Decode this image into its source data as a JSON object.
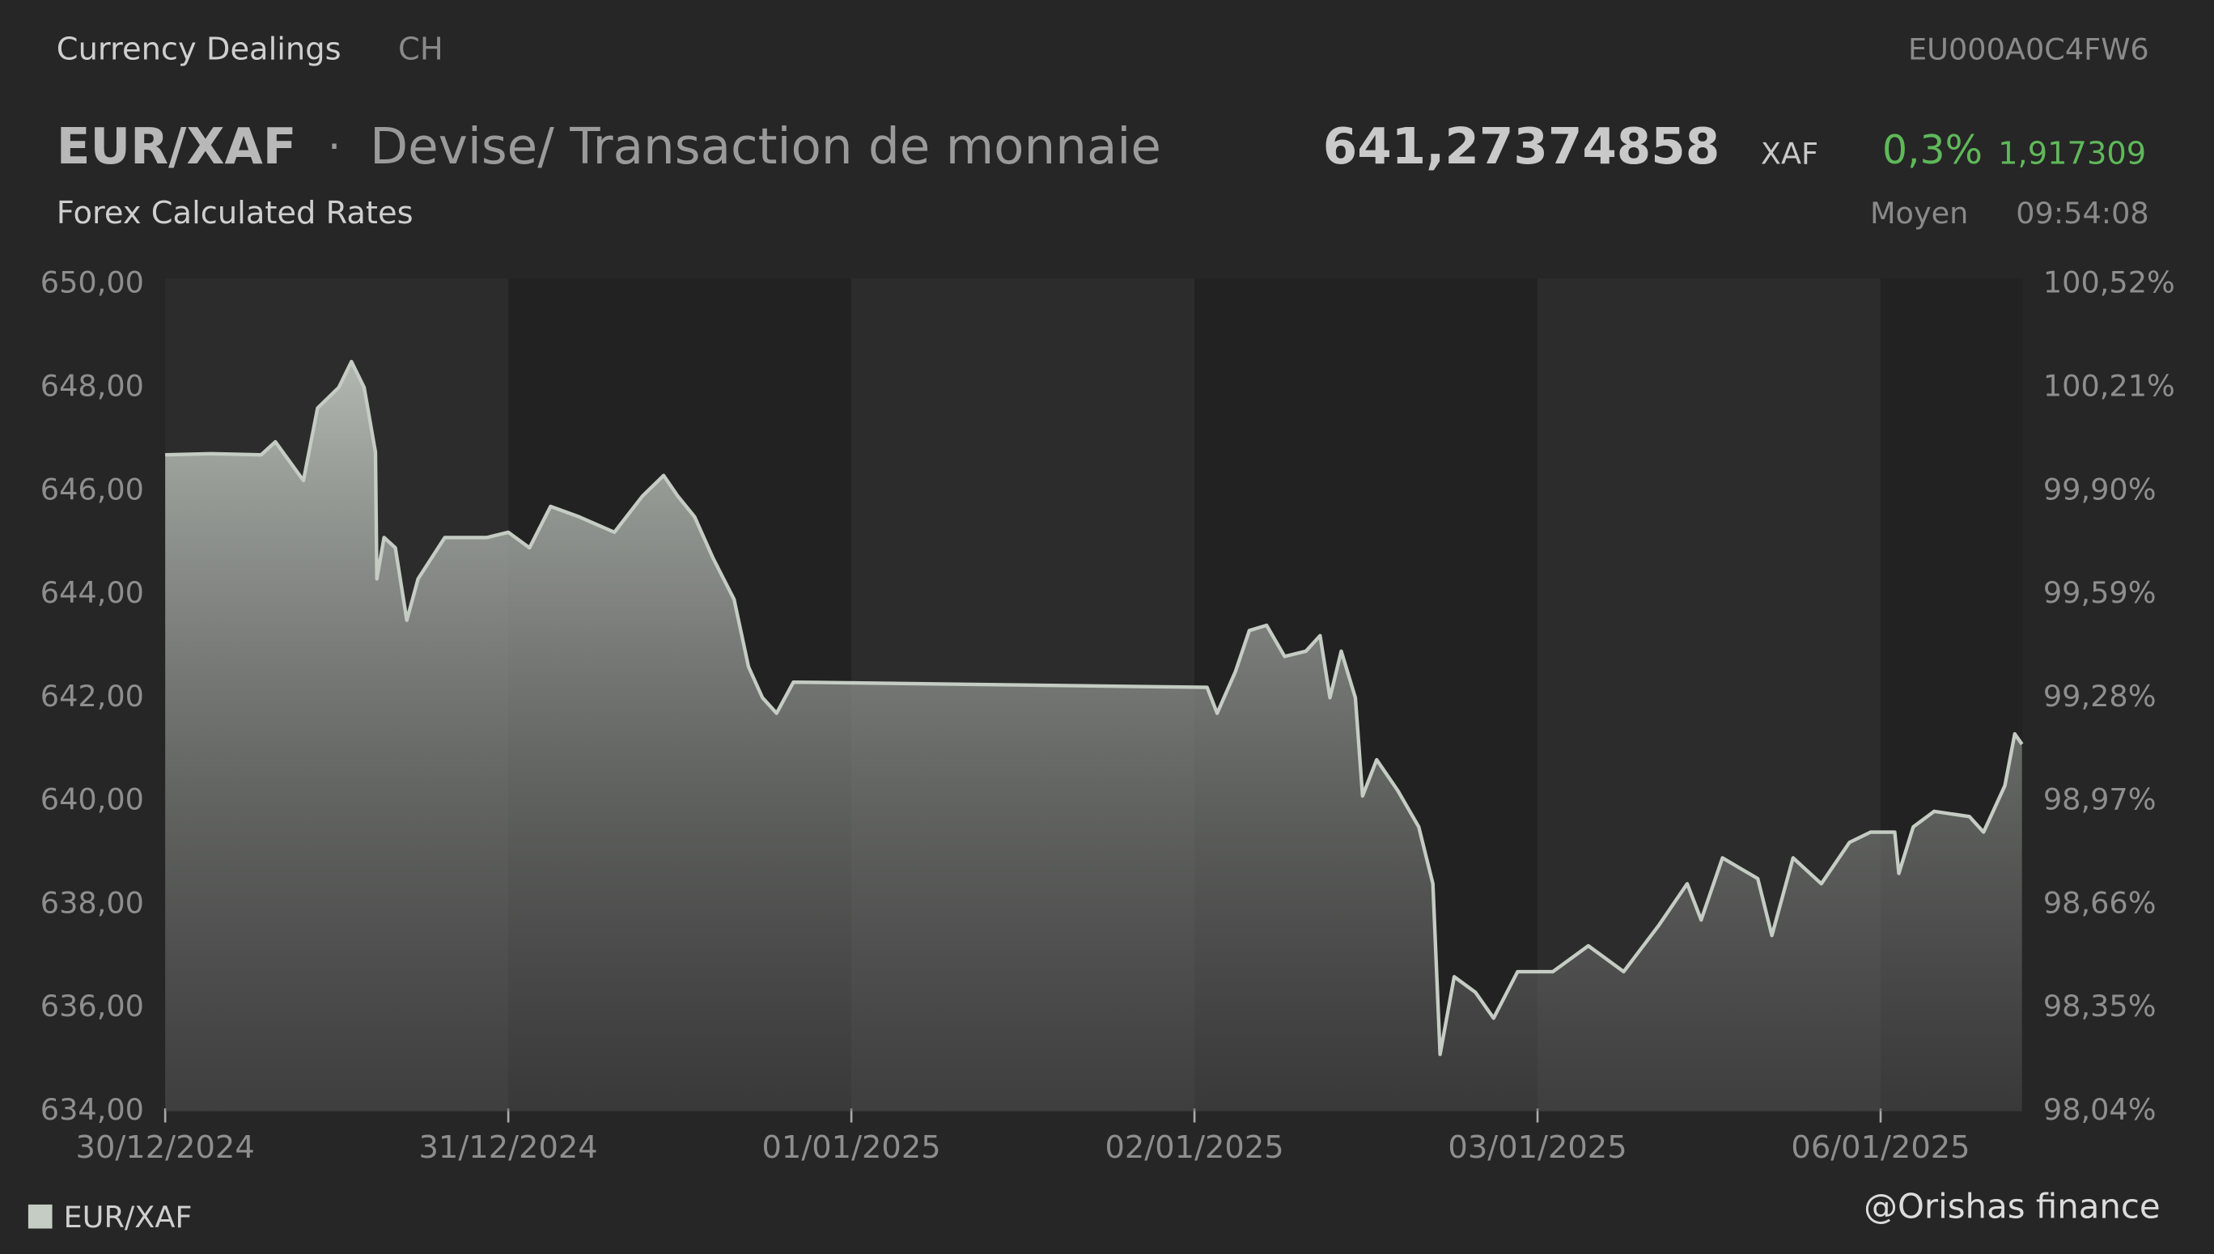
{
  "header": {
    "section": "Currency Dealings",
    "country": "CH",
    "isin": "EU000A0C4FW6",
    "symbol": "EUR/XAF",
    "separator": "·",
    "description": "Devise/ Transaction de monnaie",
    "price": "641,27374858",
    "currency": "XAF",
    "change_percent": "0,3%",
    "change_abs": "1,917309",
    "source": "Forex Calculated Rates",
    "price_type": "Moyen",
    "time": "09:54:08"
  },
  "watermark": "@Orishas finance",
  "chart_data": {
    "type": "line",
    "x": [
      0,
      0.136,
      0.28,
      0.321,
      0.403,
      0.444,
      0.506,
      0.543,
      0.58,
      0.613,
      0.617,
      0.638,
      0.671,
      0.704,
      0.737,
      0.815,
      0.938,
      1.0,
      1.062,
      1.123,
      1.206,
      1.309,
      1.391,
      1.453,
      1.494,
      1.543,
      1.597,
      1.658,
      1.7,
      1.741,
      1.782,
      1.831,
      3.037,
      3.066,
      3.119,
      3.16,
      3.21,
      3.263,
      3.325,
      3.366,
      3.395,
      3.428,
      3.469,
      3.49,
      3.531,
      3.593,
      3.654,
      3.695,
      3.716,
      3.757,
      3.819,
      3.872,
      3.942,
      4.045,
      4.148,
      4.251,
      4.354,
      4.436,
      4.477,
      4.539,
      4.642,
      4.683,
      4.745,
      4.827,
      4.909,
      4.971,
      5.041,
      5.053,
      5.095,
      5.156,
      5.259,
      5.3,
      5.362,
      5.391,
      5.412
    ],
    "series": [
      {
        "name": "EUR/XAF",
        "color": "#c4ccc3",
        "values": [
          646.7,
          646.72,
          646.7,
          646.95,
          646.2,
          647.6,
          648.0,
          648.5,
          648.0,
          646.75,
          644.3,
          645.1,
          644.9,
          643.5,
          644.3,
          645.1,
          645.1,
          645.2,
          644.9,
          645.7,
          645.5,
          645.2,
          645.9,
          646.3,
          645.9,
          645.5,
          644.7,
          643.9,
          642.6,
          642.0,
          641.7,
          642.3,
          642.2,
          641.7,
          642.5,
          643.3,
          643.4,
          642.8,
          642.9,
          643.2,
          642.0,
          642.9,
          642.0,
          640.1,
          640.8,
          640.2,
          639.5,
          638.4,
          635.1,
          636.6,
          636.3,
          635.8,
          636.7,
          636.7,
          637.2,
          636.7,
          637.6,
          638.4,
          637.7,
          638.9,
          638.5,
          637.4,
          638.9,
          638.4,
          639.2,
          639.4,
          639.4,
          638.6,
          639.5,
          639.8,
          639.7,
          639.4,
          640.3,
          641.3,
          641.1
        ]
      }
    ],
    "xlim": [
      0,
      5.412
    ],
    "xticks": [
      {
        "value": 0,
        "label": "30/12/2024"
      },
      {
        "value": 1,
        "label": "31/12/2024"
      },
      {
        "value": 2,
        "label": "01/01/2025"
      },
      {
        "value": 3,
        "label": "02/01/2025"
      },
      {
        "value": 4,
        "label": "03/01/2025"
      },
      {
        "value": 5,
        "label": "06/01/2025"
      }
    ],
    "ylim": [
      634,
      650
    ],
    "yticks": [
      {
        "value": 634,
        "label": "634,00"
      },
      {
        "value": 636,
        "label": "636,00"
      },
      {
        "value": 638,
        "label": "638,00"
      },
      {
        "value": 640,
        "label": "640,00"
      },
      {
        "value": 642,
        "label": "642,00"
      },
      {
        "value": 644,
        "label": "644,00"
      },
      {
        "value": 646,
        "label": "646,00"
      },
      {
        "value": 648,
        "label": "648,00"
      },
      {
        "value": 650,
        "label": "650,00"
      }
    ],
    "y2lim": [
      98.04,
      100.52
    ],
    "y2ticks": [
      {
        "value": 98.04,
        "label": "98,04%"
      },
      {
        "value": 98.35,
        "label": "98,35%"
      },
      {
        "value": 98.66,
        "label": "98,66%"
      },
      {
        "value": 98.97,
        "label": "98,97%"
      },
      {
        "value": 99.28,
        "label": "99,28%"
      },
      {
        "value": 99.59,
        "label": "99,59%"
      },
      {
        "value": 99.9,
        "label": "99,90%"
      },
      {
        "value": 100.21,
        "label": "100,21%"
      },
      {
        "value": 100.52,
        "label": "100,52%"
      }
    ],
    "grid": false
  }
}
